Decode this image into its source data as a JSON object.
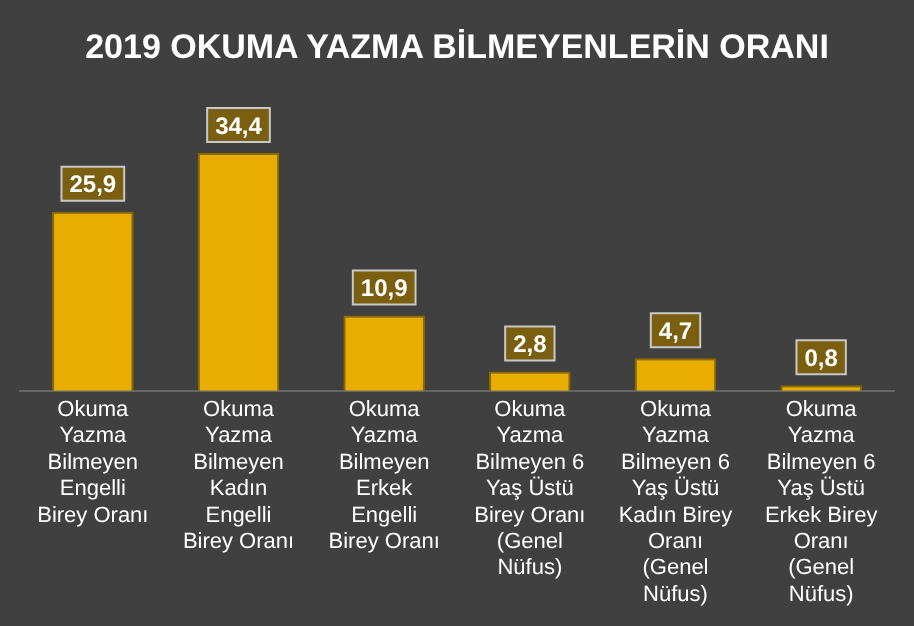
{
  "chart_data": {
    "type": "bar",
    "title": "2019 OKUMA YAZMA BİLMEYENLERİN ORANI",
    "categories": [
      "Okuma Yazma Bilmeyen Engelli Birey Oranı",
      "Okuma Yazma Bilmeyen Kadın Engelli Birey Oranı",
      "Okuma Yazma Bilmeyen Erkek Engelli Birey Oranı",
      "Okuma Yazma Bilmeyen 6 Yaş Üstü Birey Oranı (Genel Nüfus)",
      "Okuma Yazma Bilmeyen 6 Yaş Üstü Kadın Birey Oranı (Genel Nüfus)",
      "Okuma Yazma Bilmeyen 6 Yaş Üstü Erkek Birey Oranı (Genel Nüfus)"
    ],
    "values": [
      25.9,
      34.4,
      10.9,
      2.8,
      4.7,
      0.8
    ],
    "value_labels": [
      "25,9",
      "34,4",
      "10,9",
      "2,8",
      "4,7",
      "0,8"
    ],
    "color": "#e8ad00",
    "grid": false,
    "legend": false
  }
}
